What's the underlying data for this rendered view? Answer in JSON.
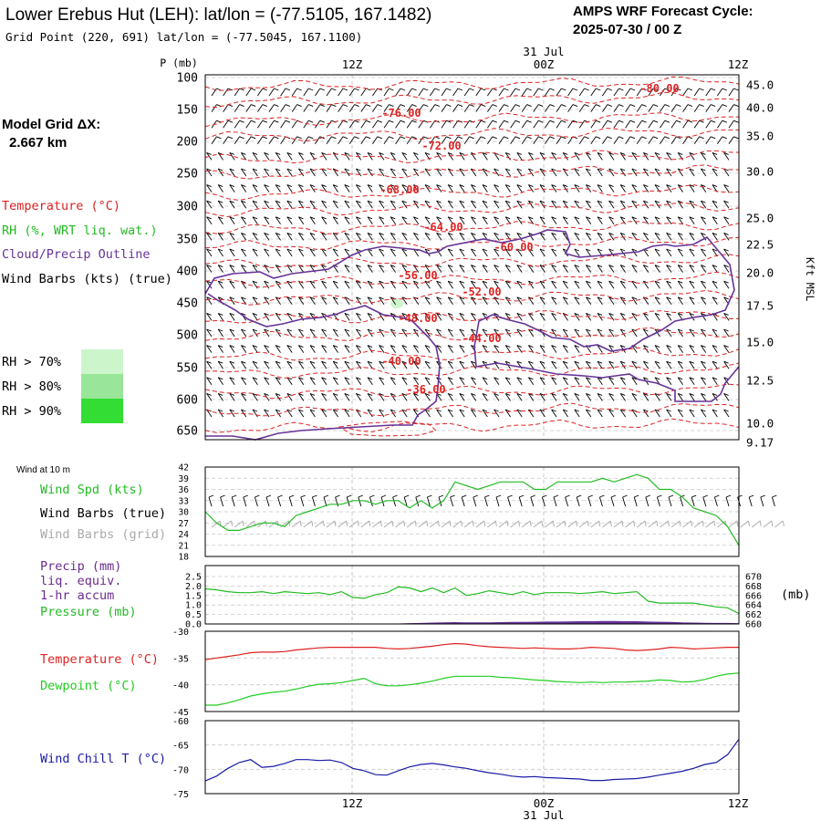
{
  "header": {
    "title": "Lower Erebus Hut (LEH):  lat/lon = (-77.5105, 167.1482)",
    "subtitle": "Grid Point (220, 691) lat/lon = (-77.5045, 167.1100)",
    "forecast_label": "AMPS WRF Forecast Cycle:",
    "forecast_cycle": "2025-07-30 / 00  Z"
  },
  "model_grid": {
    "label": "Model Grid ΔX:",
    "value": "2.667 km"
  },
  "time_axis": {
    "date_label": "31  Jul",
    "ticks": [
      "12Z",
      "00Z",
      "12Z"
    ],
    "bottom_ticks": [
      "12Z",
      "00Z",
      "12Z"
    ]
  },
  "legend_upper": {
    "temperature": "Temperature (°C)",
    "rh": "RH (%, WRT liq. wat.)",
    "cloud": "Cloud/Precip Outline",
    "wind": "Wind Barbs (kts) (true)",
    "rh70": "RH > 70%",
    "rh80": "RH > 80%",
    "rh90": "RH > 90%"
  },
  "legend_wind": {
    "header": "Wind at 10 m",
    "spd": "Wind Spd (kts)",
    "true": "Wind Barbs (true)",
    "grid": "Wind Barbs (grid)"
  },
  "legend_precip": {
    "l1": "Precip (mm)",
    "l2": "liq. equiv.",
    "l3": "1-hr accum",
    "l4": "Pressure (mb)",
    "unit": "(mb)"
  },
  "legend_temp": {
    "temp": "Temperature (°C)",
    "dew": "Dewpoint (°C)"
  },
  "legend_chill": {
    "label": "Wind Chill T (°C)"
  },
  "colors": {
    "temperature": "#dd2222",
    "rh": "#22bb22",
    "cloud": "#663399",
    "dewpoint": "#22cc22",
    "chill": "#1a1aa6",
    "grid_barb": "#aaaaaa",
    "rh70": "#ccf5cc",
    "rh80": "#99e599",
    "rh90": "#33dd33"
  },
  "chart_data": [
    {
      "type": "line",
      "title": "Upper-air cross section",
      "x": [
        0,
        6,
        12,
        18,
        24,
        30,
        36,
        42,
        48
      ],
      "ylabel": "P (mb)",
      "y_ticks": [
        "100",
        "150",
        "200",
        "250",
        "300",
        "350",
        "400",
        "450",
        "500",
        "550",
        "600",
        "650"
      ],
      "right_axis": {
        "label": "Kft MSL",
        "ticks": [
          "45.0",
          "40.0",
          "35.0",
          "30.0",
          "25.0",
          "22.5",
          "20.0",
          "17.5",
          "15.0",
          "12.5",
          "10.0",
          "9.17"
        ]
      },
      "isotherm_labels": [
        "-80.00",
        "-76.00",
        "-72.00",
        "-68.00",
        "-64.00",
        "-60.00",
        "-56.00",
        "-52.00",
        "-48.00",
        "-44.00",
        "-40.00",
        "-36.00"
      ],
      "isotherm_values": [
        -80,
        -76,
        -72,
        -68,
        -64,
        -60,
        -56,
        -52,
        -48,
        -44,
        -40,
        -36
      ],
      "cloud_outline_plevels": [
        460,
        550
      ],
      "rh_categories": [
        ">70%",
        ">80%",
        ">90%"
      ]
    },
    {
      "type": "line",
      "title": "Wind at 10 m",
      "y_ticks": [
        "42",
        "39",
        "36",
        "33",
        "30",
        "27",
        "24",
        "21",
        "18"
      ],
      "ylim": [
        18,
        42
      ],
      "series": [
        {
          "name": "Wind Spd (kts)",
          "values": [
            30,
            27,
            25,
            25,
            26,
            27,
            27,
            26,
            29,
            30,
            31,
            32,
            32,
            33,
            33,
            32,
            33,
            33,
            31,
            33,
            31,
            33,
            38,
            37,
            36,
            37,
            38,
            38,
            38,
            36,
            36,
            38,
            38,
            38,
            38,
            39,
            38,
            39,
            40,
            39,
            36,
            36,
            34,
            31,
            30,
            29,
            26,
            21
          ]
        }
      ]
    },
    {
      "type": "line",
      "title": "Precip / Pressure",
      "y_ticks": [
        "2.5",
        "2.0",
        "1.5",
        "1.0",
        "0.5",
        "0.0"
      ],
      "ylim": [
        0,
        2.5
      ],
      "right_axis": {
        "label": "(mb)",
        "ticks": [
          "670",
          "668",
          "666",
          "664",
          "662",
          "660"
        ],
        "ylim": [
          660,
          670
        ]
      },
      "series": [
        {
          "name": "Precip (mm)",
          "values": [
            0,
            0,
            0,
            0,
            0,
            0,
            0,
            0,
            0,
            0,
            0,
            0,
            0,
            0,
            0,
            0,
            0,
            0,
            0.02,
            0.03,
            0.05,
            0.06,
            0.07,
            0.06,
            0.06,
            0.06,
            0.07,
            0.08,
            0.08,
            0.09,
            0.1,
            0.1,
            0.11,
            0.12,
            0.12,
            0.13,
            0.13,
            0.12,
            0.12,
            0.1,
            0.09,
            0.08,
            0.06,
            0.05,
            0.04,
            0.03,
            0.03,
            0.02
          ]
        },
        {
          "name": "Pressure (mb)",
          "values": [
            667.4,
            667.2,
            666.8,
            666.6,
            666.6,
            666.8,
            666.4,
            666.8,
            666.6,
            666.4,
            666.6,
            666.2,
            666.8,
            665.6,
            665.4,
            666.2,
            666.6,
            667.8,
            667.6,
            666.8,
            667.6,
            666.6,
            667.6,
            666.0,
            666.4,
            667.0,
            666.6,
            666.2,
            666.8,
            666.2,
            666.6,
            666.6,
            666.6,
            666.4,
            666.6,
            666.8,
            666.4,
            666.6,
            666.8,
            664.8,
            664.4,
            664.4,
            664.4,
            664.4,
            664.0,
            663.6,
            663.4,
            662.2
          ]
        }
      ]
    },
    {
      "type": "line",
      "title": "Temperature / Dewpoint",
      "y_ticks": [
        "-30",
        "-35",
        "-40",
        "-45"
      ],
      "ylim": [
        -45,
        -30
      ],
      "series": [
        {
          "name": "Temperature (°C)",
          "values": [
            -35.3,
            -35.0,
            -34.7,
            -34.4,
            -34.0,
            -33.9,
            -33.9,
            -33.8,
            -33.5,
            -33.3,
            -33.1,
            -33.0,
            -33.0,
            -33.0,
            -33.0,
            -33.0,
            -33.2,
            -33.3,
            -33.2,
            -33.0,
            -32.8,
            -32.5,
            -32.3,
            -32.4,
            -32.7,
            -32.9,
            -33.0,
            -33.1,
            -33.2,
            -33.1,
            -33.2,
            -33.3,
            -33.3,
            -33.2,
            -33.0,
            -33.1,
            -33.2,
            -33.5,
            -33.6,
            -33.5,
            -33.3,
            -33.0,
            -33.1,
            -33.3,
            -33.2,
            -33.1,
            -33.0,
            -33.0
          ]
        },
        {
          "name": "Dewpoint (°C)",
          "values": [
            -43.8,
            -43.8,
            -43.4,
            -42.8,
            -42.1,
            -41.7,
            -41.4,
            -41.2,
            -40.8,
            -40.3,
            -39.9,
            -39.8,
            -39.6,
            -39.2,
            -38.8,
            -39.8,
            -40.2,
            -40.2,
            -40.0,
            -39.7,
            -39.3,
            -38.8,
            -38.4,
            -38.4,
            -38.4,
            -38.4,
            -38.6,
            -38.7,
            -38.9,
            -39.1,
            -39.2,
            -39.4,
            -39.5,
            -39.6,
            -39.5,
            -39.6,
            -39.5,
            -39.5,
            -39.4,
            -39.3,
            -39.1,
            -39.2,
            -39.5,
            -39.4,
            -39.0,
            -38.4,
            -38.0,
            -37.8
          ]
        }
      ]
    },
    {
      "type": "line",
      "title": "Wind Chill",
      "y_ticks": [
        "-60",
        "-65",
        "-70",
        "-75"
      ],
      "ylim": [
        -75,
        -60
      ],
      "series": [
        {
          "name": "Wind Chill T (°C)",
          "values": [
            -72.4,
            -71.4,
            -69.8,
            -68.6,
            -68.0,
            -69.6,
            -69.4,
            -68.8,
            -68.0,
            -68.0,
            -68.2,
            -68.1,
            -68.6,
            -69.8,
            -70.3,
            -71.1,
            -71.2,
            -70.3,
            -69.5,
            -69.0,
            -68.8,
            -69.1,
            -69.5,
            -69.8,
            -70.3,
            -70.7,
            -71.0,
            -71.4,
            -71.6,
            -71.5,
            -71.7,
            -71.8,
            -71.9,
            -72.0,
            -72.3,
            -72.3,
            -72.1,
            -72.0,
            -71.9,
            -71.6,
            -71.2,
            -70.8,
            -70.4,
            -69.8,
            -69.0,
            -68.6,
            -67.0,
            -63.8
          ]
        }
      ]
    }
  ]
}
